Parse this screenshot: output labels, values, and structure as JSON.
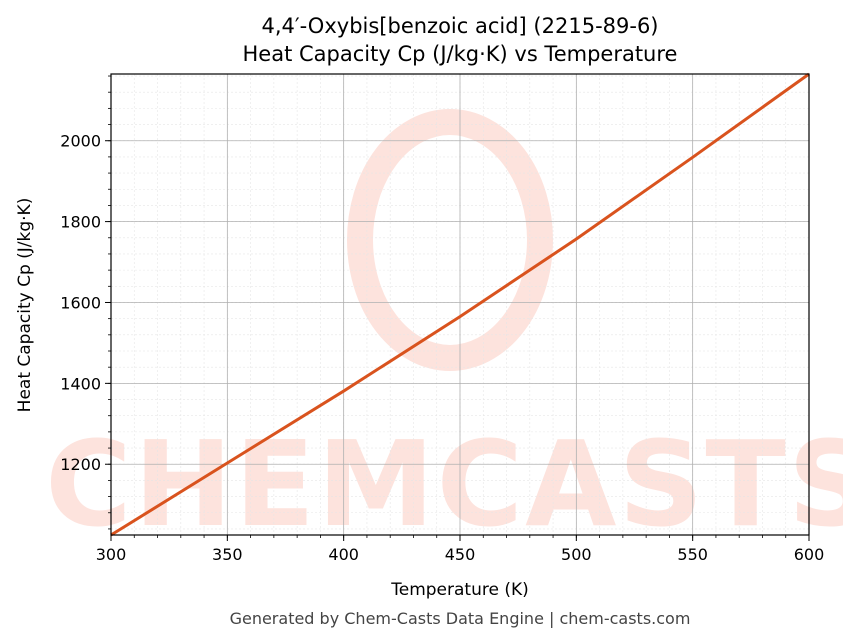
{
  "chart_data": {
    "type": "line",
    "title": "4,4′-Oxybis[benzoic acid] (2215-89-6)",
    "subtitle": "Heat Capacity Cp (J/kg·K) vs Temperature",
    "xlabel": "Temperature (K)",
    "ylabel": "Heat Capacity Cp (J/kg·K)",
    "xlim": [
      300,
      600
    ],
    "ylim": [
      1025,
      2165
    ],
    "x_ticks": [
      300,
      350,
      400,
      450,
      500,
      550,
      600
    ],
    "y_ticks": [
      1200,
      1400,
      1600,
      1800,
      2000
    ],
    "grid": true,
    "series": [
      {
        "color": "#d9531e",
        "x": [
          300,
          350,
          400,
          450,
          500,
          550,
          600
        ],
        "y": [
          1025,
          1203,
          1381,
          1565,
          1757,
          1959,
          2165
        ]
      }
    ]
  },
  "footer": "Generated by Chem-Casts Data Engine | chem-casts.com",
  "watermark": {
    "text": "CHEMCASTS",
    "color": "#fde3dd"
  }
}
